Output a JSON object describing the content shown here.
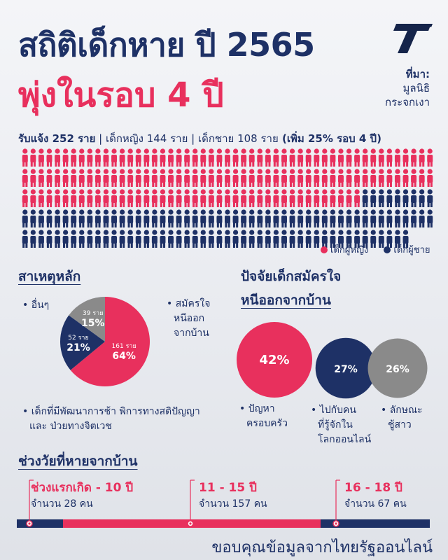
{
  "header": {
    "title_line1": "สถิติเด็กหาย ปี 2565",
    "title_line2": "พุ่งในรอบ 4 ปี",
    "source_heading": "ที่มา:",
    "source_line1": "มูลนิธิ",
    "source_line2": "กระจกเงา",
    "logo_icon": "thairath-t-logo-icon"
  },
  "summary": {
    "reports": "รับแจ้ง 252 ราย",
    "sep1": " | ",
    "girls": "เด็กหญิง 144 ราย",
    "sep2": " | ",
    "boys": "เด็กชาย 108 ราย",
    "increase": " (เพิ่ม 25% รอบ 4 ปี)"
  },
  "colors": {
    "girl": "#e8305d",
    "boy": "#1e3166",
    "other": "#8a8a8a",
    "accent_red": "#e8305d",
    "navy": "#1e3166"
  },
  "legend": {
    "girl": "เด็กผู้หญิง",
    "boy": "เด็กผู้ชาย"
  },
  "sections": {
    "causes": "สาเหตุหลัก",
    "factors_line1": "ปัจจัยเด็กสมัครใจ",
    "factors_line2": "หนีออกจากบ้าน",
    "ages": "ช่วงวัยที่หายจากบ้าน"
  },
  "labels": {
    "pie_other": "• อื่นๆ",
    "pie_run_l1": "• สมัครใจ",
    "pie_run_l2": "หนีออก",
    "pie_run_l3": "จากบ้าน",
    "pie_dev_l1": "• เด็กที่มีพัฒนาการช้า พิการทางสติปัญญา",
    "pie_dev_l2": "และ ป่วยทางจิตเวช",
    "bub0_l1": "• ปัญหา",
    "bub0_l2": "ครอบครัว",
    "bub1_l1": "• ไปกับคน",
    "bub1_l2": "ที่รู้จักใน",
    "bub1_l3": "โลกออนไลน์",
    "bub2_l1": "• ลักษณะ",
    "bub2_l2": "ชู้สาว"
  },
  "footer": {
    "thanks": "ขอบคุณข้อมูลจากไทยรัฐออนไลน์"
  },
  "chart_data": [
    {
      "type": "pictogram",
      "total": 252,
      "series": [
        {
          "name": "เด็กผู้หญิง",
          "value": 144,
          "color": "#e8305d"
        },
        {
          "name": "เด็กผู้ชาย",
          "value": 108,
          "color": "#1e3166"
        }
      ]
    },
    {
      "type": "pie",
      "slices": [
        {
          "count_label": "161 ราย",
          "value": 64,
          "pct_label": "64%",
          "color": "#e8305d"
        },
        {
          "count_label": "52 ราย",
          "value": 21,
          "pct_label": "21%",
          "color": "#1e3166"
        },
        {
          "count_label": "39 ราย",
          "value": 15,
          "pct_label": "15%",
          "color": "#8a8a8a"
        }
      ]
    },
    {
      "type": "bubble",
      "items": [
        {
          "value": 42,
          "label": "42%",
          "color": "#e8305d"
        },
        {
          "value": 27,
          "label": "27%",
          "color": "#1e3166"
        },
        {
          "value": 26,
          "label": "26%",
          "color": "#8a8a8a"
        }
      ]
    },
    {
      "type": "timeline",
      "segments": [
        {
          "range": "ช่วงแรกเกิด - 10 ปี",
          "count_label": "จำนวน 28 คน",
          "value": 28
        },
        {
          "range": "11 - 15 ปี",
          "count_label": "จำนวน 157 คน",
          "value": 157
        },
        {
          "range": "16 - 18 ปี",
          "count_label": "จำนวน 67 คน",
          "value": 67
        }
      ]
    }
  ]
}
